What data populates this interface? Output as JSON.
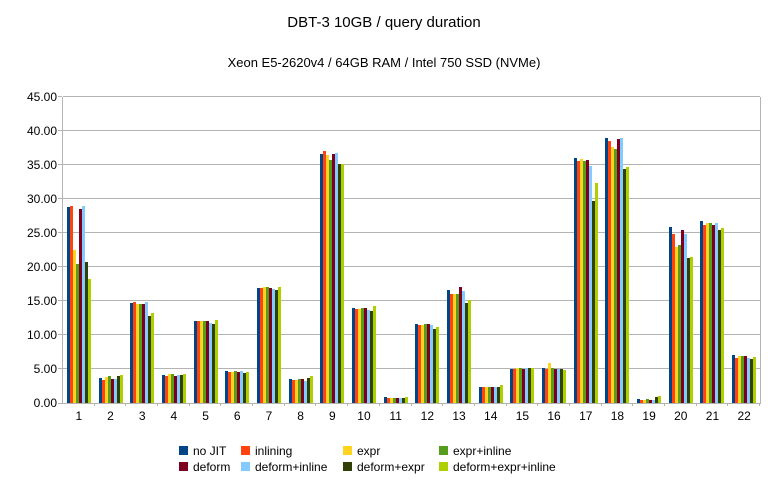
{
  "chart_data": {
    "type": "bar",
    "title": "DBT-3 10GB / query duration",
    "subtitle": "Xeon E5-2620v4 / 64GB RAM / Intel 750 SSD (NVMe)",
    "xlabel": "",
    "ylabel": "",
    "ylim": [
      0,
      45
    ],
    "y_ticks": [
      "0.00",
      "5.00",
      "10.00",
      "15.00",
      "20.00",
      "25.00",
      "30.00",
      "35.00",
      "40.00",
      "45.00"
    ],
    "grid": "horizontal",
    "legend_position": "bottom",
    "categories": [
      "1",
      "2",
      "3",
      "4",
      "5",
      "6",
      "7",
      "8",
      "9",
      "10",
      "11",
      "12",
      "13",
      "14",
      "15",
      "16",
      "17",
      "18",
      "19",
      "20",
      "21",
      "22"
    ],
    "series": [
      {
        "name": "no JIT",
        "color": "#004586",
        "values": [
          28.8,
          3.7,
          14.7,
          4.1,
          12.1,
          4.7,
          16.9,
          3.5,
          36.6,
          13.9,
          0.9,
          11.6,
          16.6,
          2.4,
          5.0,
          5.2,
          36.0,
          39.0,
          0.6,
          25.9,
          26.8,
          7.1
        ]
      },
      {
        "name": "inlining",
        "color": "#FF420E",
        "values": [
          29.0,
          3.4,
          14.8,
          4.0,
          12.0,
          4.6,
          16.9,
          3.4,
          37.1,
          13.8,
          0.8,
          11.4,
          16.1,
          2.3,
          5.0,
          5.0,
          35.6,
          38.5,
          0.5,
          24.9,
          26.2,
          6.6
        ]
      },
      {
        "name": "expr",
        "color": "#FFD320",
        "values": [
          22.5,
          3.8,
          14.5,
          4.2,
          12.0,
          4.6,
          17.0,
          3.4,
          36.4,
          13.8,
          0.8,
          11.5,
          16.1,
          2.3,
          5.1,
          5.9,
          35.9,
          37.6,
          0.5,
          23.0,
          26.4,
          6.9
        ]
      },
      {
        "name": "expr+inline",
        "color": "#579D1C",
        "values": [
          20.4,
          3.9,
          14.5,
          4.2,
          12.1,
          4.7,
          17.0,
          3.5,
          35.8,
          13.9,
          0.8,
          11.6,
          16.0,
          2.4,
          5.2,
          5.1,
          35.6,
          37.4,
          0.6,
          23.2,
          26.5,
          6.9
        ]
      },
      {
        "name": "deform",
        "color": "#7E0021",
        "values": [
          28.6,
          3.6,
          14.6,
          4.0,
          12.0,
          4.6,
          16.9,
          3.5,
          36.6,
          14.0,
          0.8,
          11.6,
          17.1,
          2.4,
          5.0,
          5.0,
          35.8,
          38.8,
          0.5,
          25.4,
          26.2,
          6.9
        ]
      },
      {
        "name": "deform+inline",
        "color": "#83CAFF",
        "values": [
          29.0,
          3.5,
          14.8,
          4.1,
          11.8,
          4.7,
          16.7,
          3.3,
          36.7,
          13.7,
          0.8,
          11.4,
          16.4,
          2.4,
          5.1,
          5.0,
          34.9,
          38.9,
          0.5,
          24.9,
          26.4,
          6.6
        ]
      },
      {
        "name": "deform+expr",
        "color": "#314004",
        "values": [
          20.8,
          3.9,
          12.8,
          4.1,
          11.6,
          4.4,
          16.6,
          3.7,
          35.1,
          13.5,
          0.8,
          10.9,
          14.7,
          2.3,
          5.1,
          5.0,
          29.7,
          34.4,
          0.9,
          21.3,
          25.4,
          6.4
        ]
      },
      {
        "name": "deform+expr+inline",
        "color": "#AECF00",
        "values": [
          18.3,
          4.1,
          13.3,
          4.3,
          12.2,
          4.6,
          17.0,
          4.0,
          35.2,
          14.3,
          0.9,
          11.2,
          15.1,
          2.6,
          5.1,
          4.9,
          32.4,
          34.7,
          1.1,
          21.4,
          25.7,
          6.8
        ]
      }
    ]
  }
}
